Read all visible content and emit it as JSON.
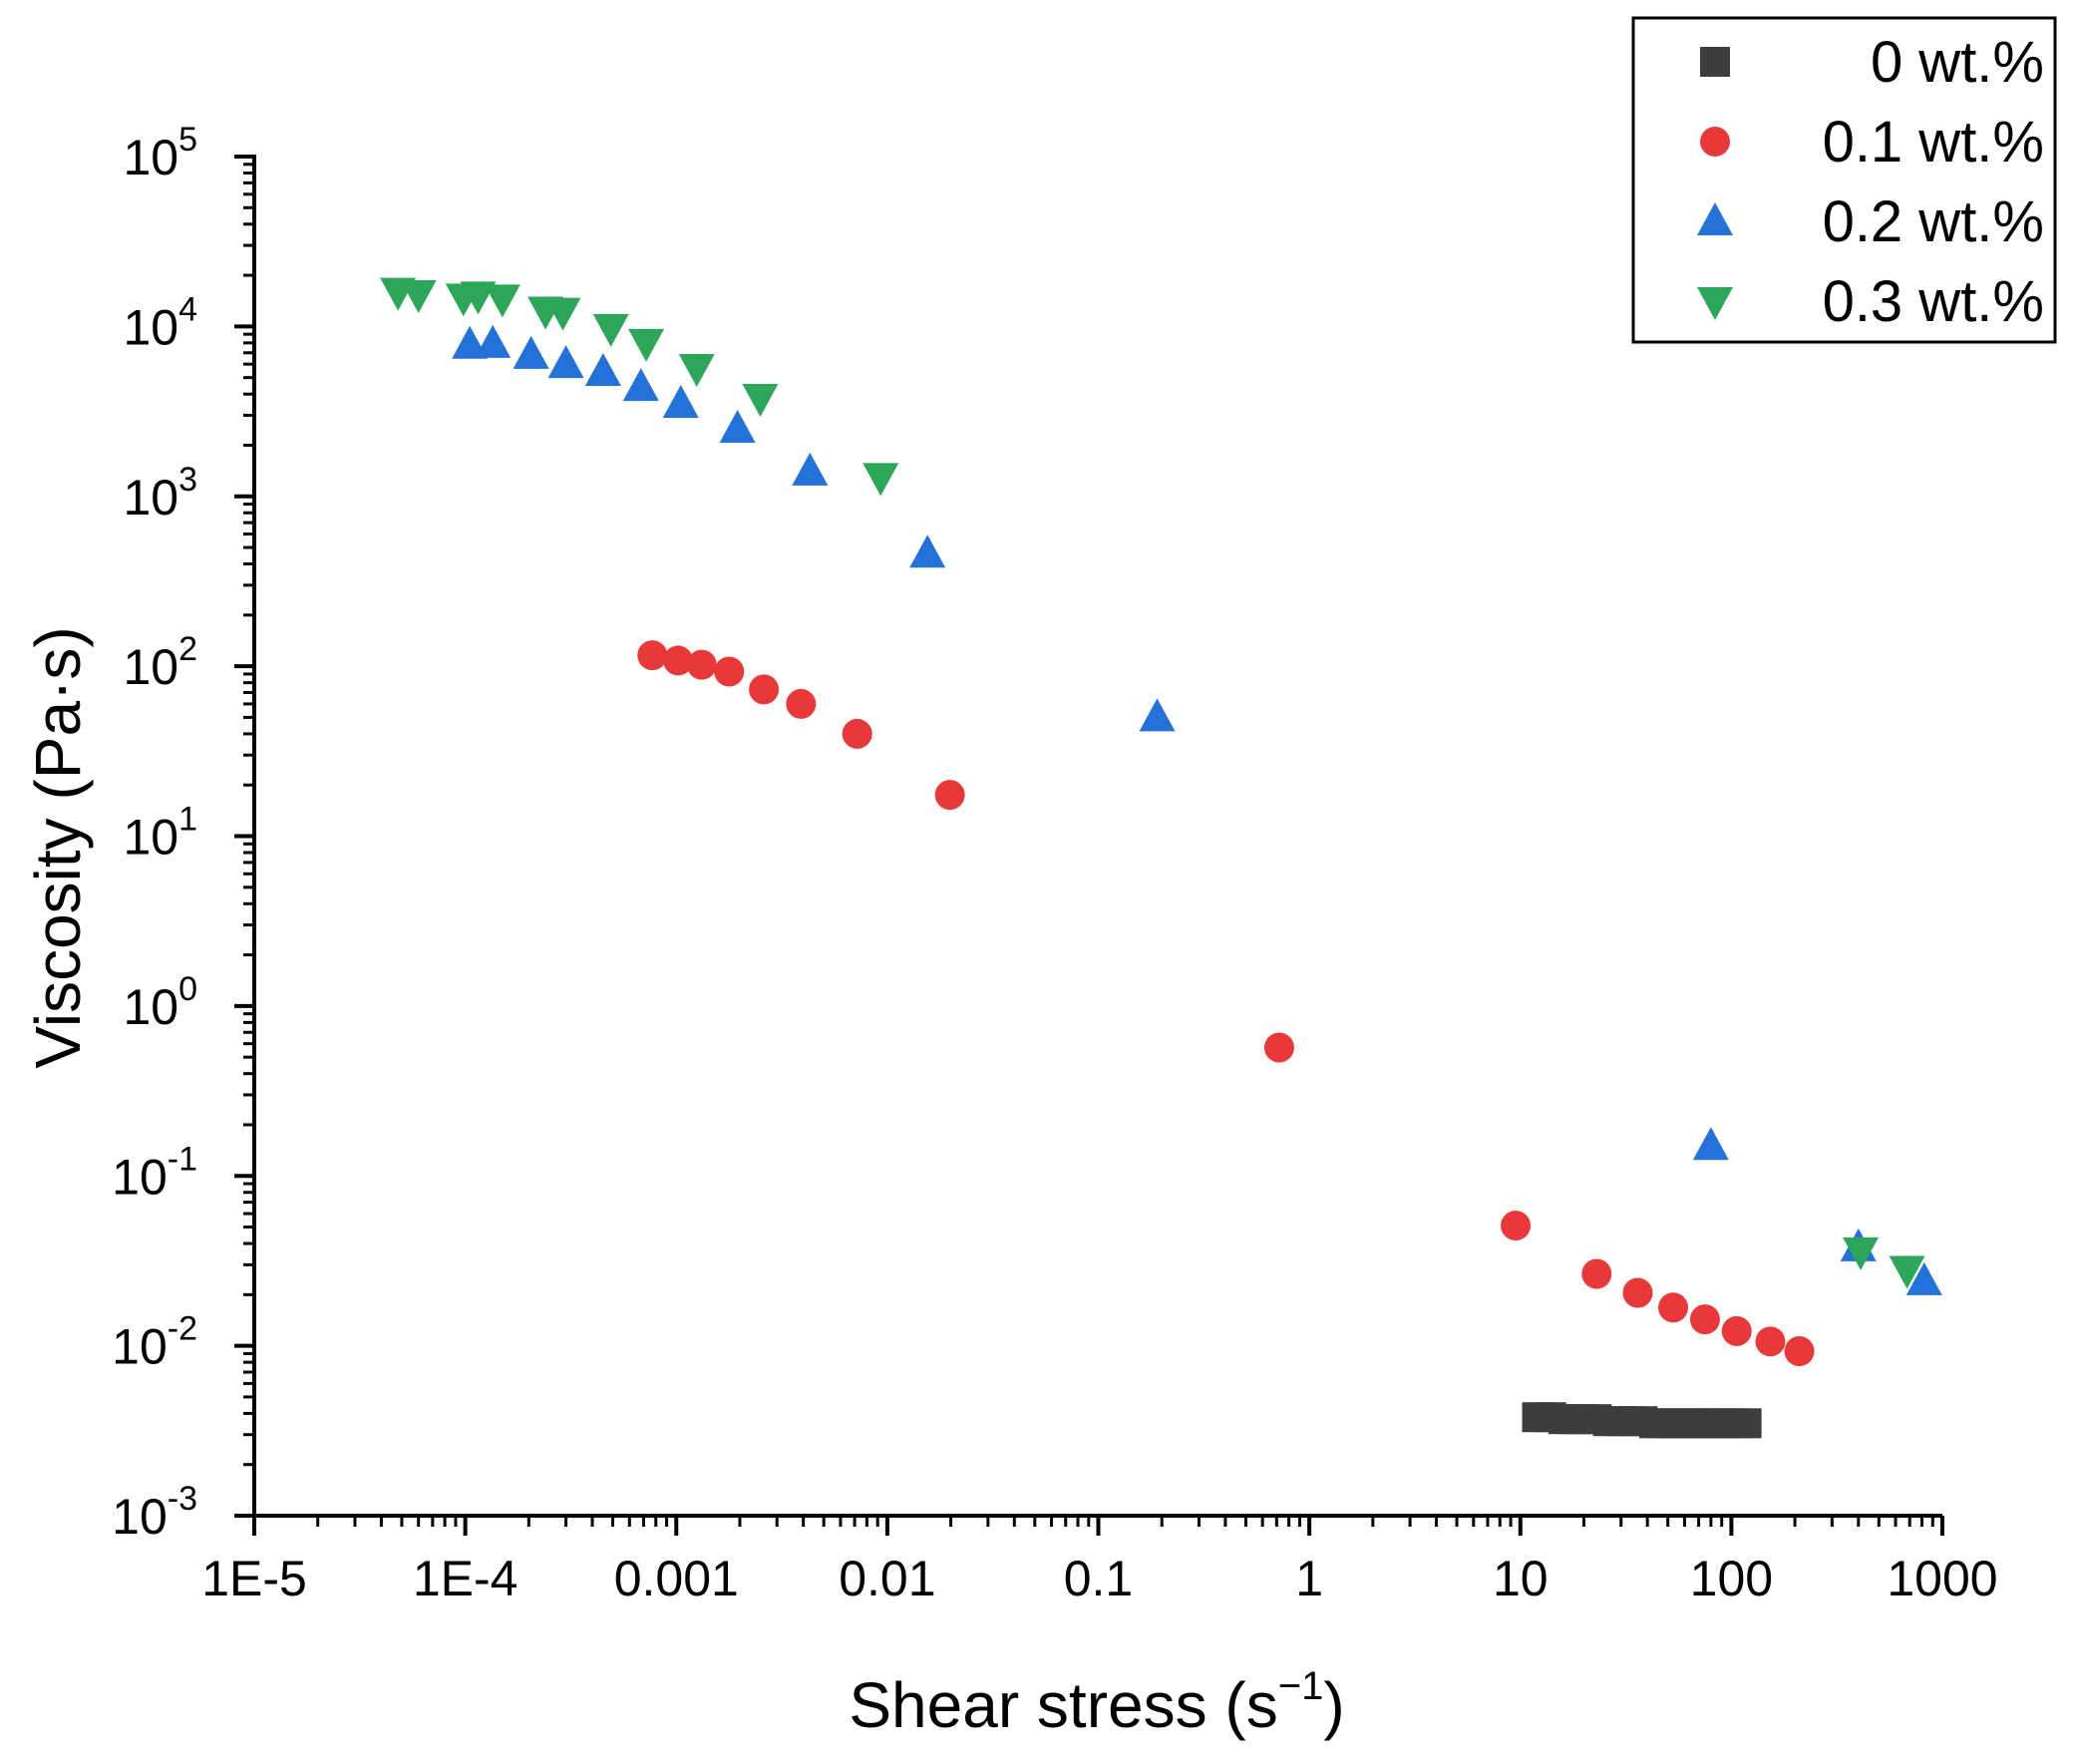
{
  "chart_data": {
    "type": "scatter",
    "xscale": "log",
    "yscale": "log",
    "xlabel": "Shear stress (s",
    "xlabel_sup": "−1",
    "xlabel_end": ")",
    "ylabel": "Viscosity (Pa·s)",
    "xlim": [
      1e-05,
      1000
    ],
    "ylim": [
      0.001,
      100000
    ],
    "xticks": [
      1e-05,
      0.0001,
      0.001,
      0.01,
      0.1,
      1,
      10,
      100,
      1000
    ],
    "xtick_labels": [
      "1E-5",
      "1E-4",
      "0.001",
      "0.01",
      "0.1",
      "1",
      "10",
      "100",
      "1000"
    ],
    "ytick_exponents": [
      "-3",
      "-2",
      "-1",
      "0",
      "1",
      "2",
      "3",
      "4",
      "5"
    ],
    "ytick_base": "10",
    "legend_position": "top-right",
    "series": [
      {
        "name": "0 wt.%",
        "marker": "square",
        "color": "#3d3d3d",
        "x": [
          12,
          14,
          16,
          18,
          20,
          23,
          26,
          30,
          34,
          38,
          43,
          48,
          54,
          60,
          67,
          75,
          84,
          94,
          105,
          118
        ],
        "y": [
          0.0038,
          0.0038,
          0.0037,
          0.0037,
          0.0037,
          0.0037,
          0.0036,
          0.0036,
          0.0036,
          0.0036,
          0.0035,
          0.0035,
          0.0035,
          0.0035,
          0.0035,
          0.0035,
          0.0035,
          0.0035,
          0.0035,
          0.0035
        ]
      },
      {
        "name": "0.1 wt.%",
        "marker": "circle",
        "color": "#e8393a",
        "x": [
          0.00077,
          0.00102,
          0.00132,
          0.00178,
          0.0026,
          0.0039,
          0.0072,
          0.0198,
          0.72,
          9.5,
          23,
          36,
          53,
          75,
          106,
          153,
          210
        ],
        "y": [
          116,
          108,
          102,
          93,
          73,
          60,
          40,
          17.5,
          0.57,
          0.051,
          0.0265,
          0.0205,
          0.0168,
          0.0143,
          0.0122,
          0.0106,
          0.0093
        ]
      },
      {
        "name": "0.2 wt.%",
        "marker": "triangle-up",
        "color": "#2472d8",
        "x": [
          0.000105,
          0.000135,
          0.000205,
          0.0003,
          0.00045,
          0.00068,
          0.00105,
          0.00195,
          0.0043,
          0.0155,
          0.19,
          80,
          400,
          820
        ],
        "y": [
          7800,
          7900,
          6800,
          6000,
          5400,
          4400,
          3500,
          2500,
          1400,
          460,
          50,
          0.15,
          0.038,
          0.024
        ]
      },
      {
        "name": "0.3 wt.%",
        "marker": "triangle-down",
        "color": "#2da65a",
        "x": [
          4.8e-05,
          6e-05,
          9.8e-05,
          0.000115,
          0.00015,
          0.00024,
          0.00029,
          0.00049,
          0.00072,
          0.00125,
          0.0025,
          0.0093,
          410,
          680
        ],
        "y": [
          16000,
          15500,
          14800,
          15200,
          14600,
          12400,
          12200,
          9800,
          8000,
          5700,
          3800,
          1300,
          0.036,
          0.028
        ]
      }
    ]
  }
}
